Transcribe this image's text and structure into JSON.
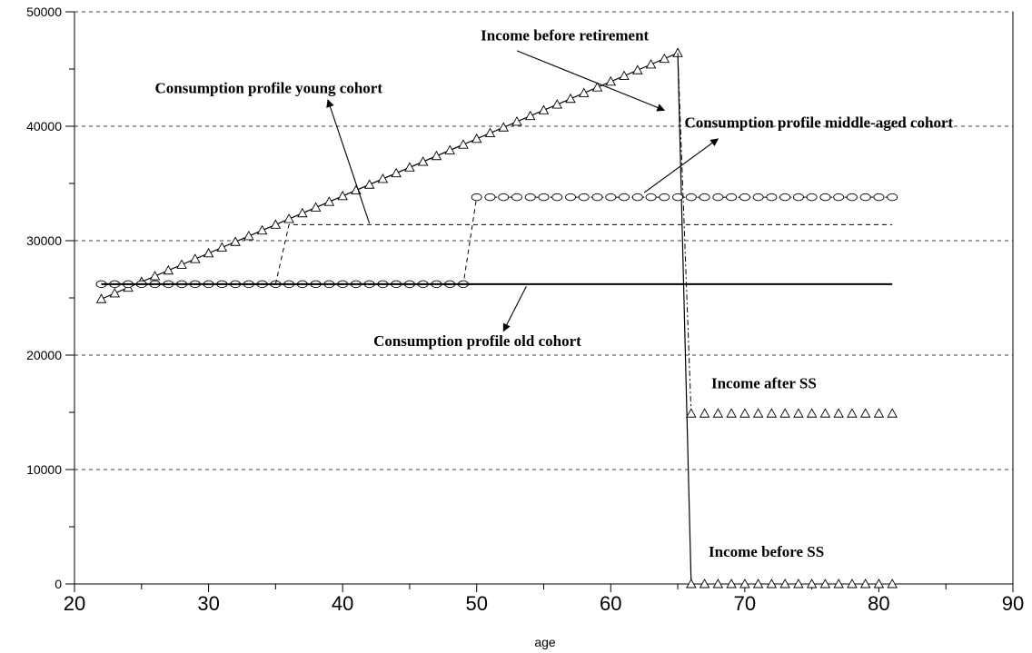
{
  "chart_data": {
    "type": "line",
    "title": "",
    "xlabel": "age",
    "ylabel": "",
    "xlim": [
      20,
      90
    ],
    "ylim": [
      0,
      50000
    ],
    "x_ticks": [
      "20",
      "30",
      "40",
      "50",
      "60",
      "70",
      "80",
      "90"
    ],
    "y_ticks": [
      "0",
      "10000",
      "20000",
      "30000",
      "40000",
      "50000"
    ],
    "grid": "horizontal dashed",
    "series": [
      {
        "key": "income_before_retirement",
        "style": "triangle-markers",
        "points": [
          [
            22,
            24900
          ],
          [
            65,
            46400
          ],
          [
            66,
            0
          ]
        ]
      },
      {
        "key": "income_after_ss",
        "style": "triangle-markers",
        "points": [
          [
            66,
            14900
          ],
          [
            81,
            14900
          ]
        ]
      },
      {
        "key": "income_before_ss",
        "style": "triangle-markers",
        "points": [
          [
            66,
            0
          ],
          [
            81,
            0
          ]
        ]
      },
      {
        "key": "consumption_young",
        "style": "circle-markers",
        "points": [
          [
            22,
            26200
          ],
          [
            49,
            26200
          ],
          [
            50,
            33800
          ],
          [
            81,
            33800
          ]
        ]
      },
      {
        "key": "consumption_middle",
        "style": "dashed",
        "points": [
          [
            35,
            26200
          ],
          [
            36,
            31400
          ],
          [
            81,
            31400
          ]
        ]
      },
      {
        "key": "consumption_old",
        "style": "solid",
        "points": [
          [
            22,
            26200
          ],
          [
            81,
            26200
          ]
        ]
      }
    ],
    "annotations": [
      {
        "text": "Income before retirement",
        "at": [
          50.3,
          47500
        ],
        "arrow_tail": [
          53,
          46600
        ],
        "arrow_head": [
          64,
          41400
        ]
      },
      {
        "text": "Consumption profile young cohort",
        "at": [
          26,
          42900
        ],
        "arrow_tail": [
          42,
          31500
        ],
        "arrow_head": [
          38.9,
          42300
        ]
      },
      {
        "text": "Consumption profile middle-aged cohort",
        "at": [
          65.5,
          39900
        ],
        "arrow_tail": [
          62.5,
          34200
        ],
        "arrow_head": [
          68,
          38900
        ]
      },
      {
        "text": "Consumption profile old cohort",
        "at": [
          42.3,
          20800
        ],
        "arrow_tail": [
          53.7,
          26000
        ],
        "arrow_head": [
          52,
          22100
        ]
      },
      {
        "text": "Income after SS",
        "at": [
          67.5,
          17100
        ],
        "arrow_tail": null,
        "arrow_head": null
      },
      {
        "text": "Income before SS",
        "at": [
          67.3,
          2400
        ],
        "arrow_tail": null,
        "arrow_head": null
      }
    ]
  }
}
